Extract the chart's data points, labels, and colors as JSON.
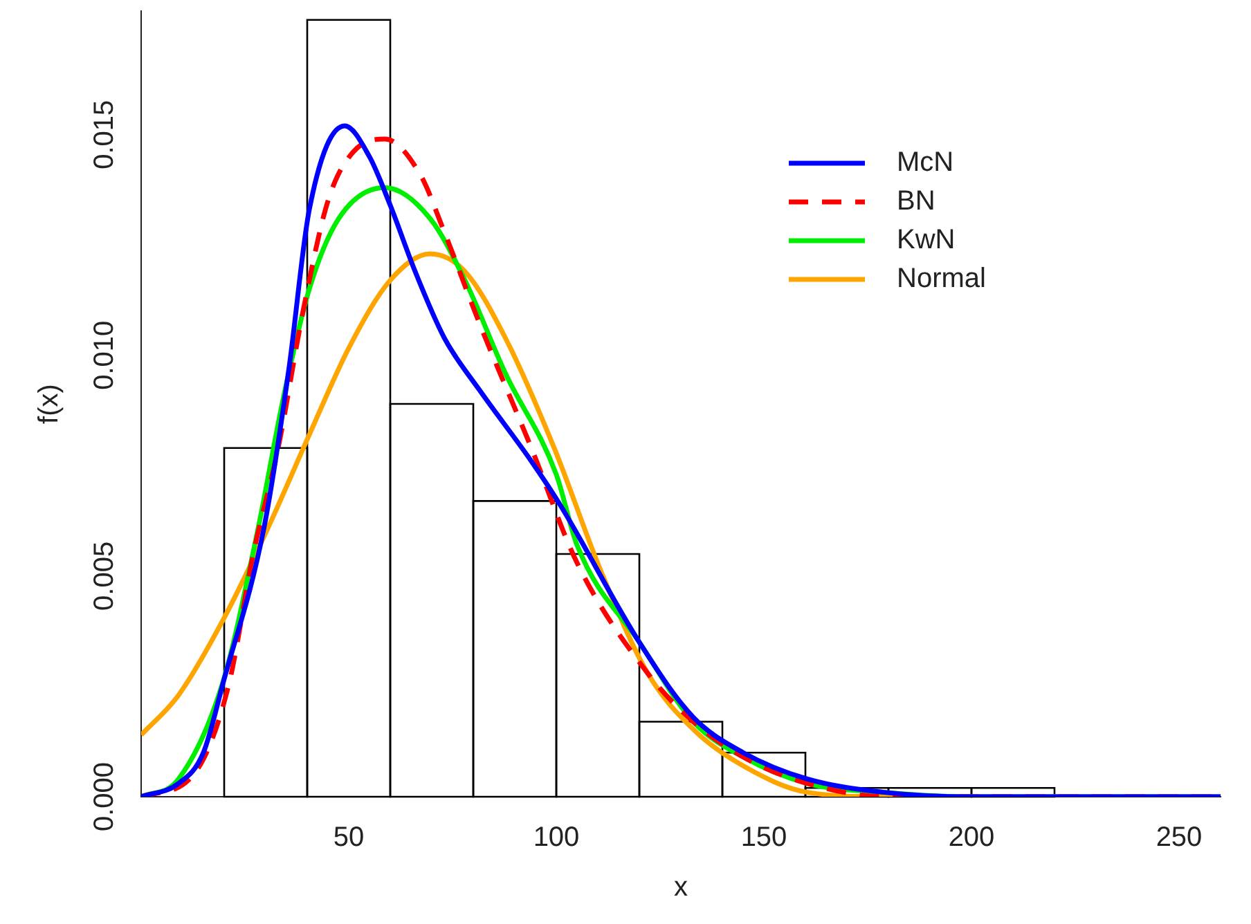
{
  "chart_data": {
    "type": "histogram",
    "xlabel": "x",
    "ylabel": "f(x)",
    "bins": [
      20,
      40,
      60,
      80,
      100,
      120,
      140,
      160,
      180,
      200,
      220
    ],
    "values": [
      0.0079,
      0.0176,
      0.0089,
      0.0067,
      0.0055,
      0.0017,
      0.001,
      0.0002,
      0.0002,
      0.0002
    ],
    "color": "#000000",
    "xlim": [
      0,
      260
    ],
    "ylim": [
      0,
      0.0178
    ],
    "xticks": [
      50,
      100,
      150,
      200,
      250
    ],
    "yticks": [
      {
        "value": 0,
        "label": "0.000"
      },
      {
        "value": 0.005,
        "label": "0.005"
      },
      {
        "value": 0.01,
        "label": "0.010"
      },
      {
        "value": 0.015,
        "label": "0.015"
      }
    ],
    "grid": false,
    "legend": "top right",
    "series": [
      {
        "name": "McN",
        "type": "line",
        "color": "#0000ff",
        "line_style": "solid",
        "x": [
          0,
          9,
          15,
          19.8,
          29.6,
          35.6,
          40.5,
          49,
          55,
          60,
          66,
          73,
          81.6,
          94,
          101,
          120,
          133,
          145,
          160.5,
          179,
          200,
          260
        ],
        "values": [
          0,
          0.0003,
          0.001,
          0.0026,
          0.0061,
          0.0097,
          0.0133,
          0.0152,
          0.0145,
          0.0134,
          0.0119,
          0.0104,
          0.0092,
          0.0076,
          0.0066,
          0.0035,
          0.0018,
          0.001,
          0.0004,
          0.0001,
          0,
          0
        ]
      },
      {
        "name": "BN",
        "type": "line",
        "color": "#ff0000",
        "line_style": "dashed",
        "x": [
          0,
          12.6,
          21,
          27,
          33,
          39,
          45,
          51,
          58.7,
          67.2,
          73,
          81.6,
          94,
          105,
          122,
          133,
          145,
          160.5,
          180,
          260
        ],
        "values": [
          0,
          0.0005,
          0.0025,
          0.0055,
          0.0079,
          0.011,
          0.0135,
          0.0146,
          0.0149,
          0.0141,
          0.0128,
          0.0107,
          0.0079,
          0.0053,
          0.0028,
          0.0017,
          0.0009,
          0.0003,
          0,
          0
        ]
      },
      {
        "name": "KwN",
        "type": "line",
        "color": "#00ee00",
        "line_style": "solid",
        "x": [
          0,
          9,
          19.7,
          28,
          34.4,
          40.5,
          47.6,
          58.7,
          69.6,
          78,
          87.7,
          100,
          105,
          120,
          133,
          145,
          160.5,
          179,
          200,
          260
        ],
        "values": [
          0,
          0.0004,
          0.0026,
          0.006,
          0.0091,
          0.0115,
          0.0131,
          0.0138,
          0.0131,
          0.0117,
          0.0096,
          0.0073,
          0.0057,
          0.0035,
          0.0017,
          0.0009,
          0.0003,
          0.0001,
          0,
          0
        ]
      },
      {
        "name": "Normal",
        "type": "line",
        "color": "#ffa500",
        "line_style": "solid",
        "x": [
          0,
          9,
          19.7,
          30.6,
          40.5,
          50.2,
          60,
          69.6,
          78,
          87.7,
          99.5,
          110.8,
          122,
          133.3,
          145,
          160.5,
          180,
          260
        ],
        "values": [
          0.0014,
          0.0023,
          0.004,
          0.0061,
          0.0082,
          0.0102,
          0.0117,
          0.0123,
          0.0119,
          0.0104,
          0.0079,
          0.0051,
          0.0028,
          0.0015,
          0.0007,
          0.0001,
          0,
          0
        ]
      }
    ]
  }
}
